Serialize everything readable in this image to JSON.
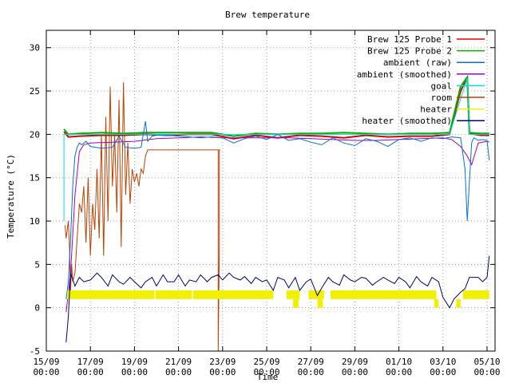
{
  "chart_data": {
    "type": "line",
    "title": "Brew temperature",
    "xlabel": "Time",
    "ylabel": "Temperature (°C)",
    "ylim": [
      -5,
      32
    ],
    "yticks": [
      -5,
      0,
      5,
      10,
      15,
      20,
      25,
      30
    ],
    "xlim": [
      0,
      25
    ],
    "xticks": [
      {
        "x": 0,
        "l1": "15/09",
        "l2": "00:00"
      },
      {
        "x": 2,
        "l1": "17/09",
        "l2": "00:00"
      },
      {
        "x": 4,
        "l1": "19/09",
        "l2": "00:00"
      },
      {
        "x": 6,
        "l1": "21/09",
        "l2": "00:00"
      },
      {
        "x": 8,
        "l1": "23/09",
        "l2": "00:00"
      },
      {
        "x": 10,
        "l1": "25/09",
        "l2": "00:00"
      },
      {
        "x": 12,
        "l1": "27/09",
        "l2": "00:00"
      },
      {
        "x": 14,
        "l1": "29/09",
        "l2": "00:00"
      },
      {
        "x": 16,
        "l1": "01/10",
        "l2": "00:00"
      },
      {
        "x": 18,
        "l1": "03/10",
        "l2": "00:00"
      },
      {
        "x": 20,
        "l1": "05/10",
        "l2": "00:00"
      }
    ],
    "grid": true,
    "legend_position": "top-right",
    "series": [
      {
        "name": "Brew 125 Probe 1",
        "color": "#e00000",
        "x": [
          0.8,
          1.0,
          1.5,
          2.5,
          3.5,
          4.5,
          5.5,
          6.5,
          7.5,
          8.5,
          9.5,
          10.5,
          11.5,
          12.5,
          13.5,
          14.5,
          15.5,
          16.5,
          17.5,
          18.3,
          18.8,
          19.1,
          19.2,
          19.7,
          20.1
        ],
        "y": [
          20.3,
          19.7,
          19.8,
          19.9,
          19.9,
          20.0,
          19.9,
          20.0,
          20.0,
          19.5,
          19.9,
          19.6,
          19.9,
          19.8,
          19.6,
          19.9,
          19.7,
          19.8,
          19.8,
          20.0,
          25.0,
          26.5,
          20.1,
          19.9,
          19.9
        ]
      },
      {
        "name": "Brew 125 Probe 2",
        "color": "#00b000",
        "x": [
          0.8,
          1.0,
          1.5,
          2.5,
          3.5,
          4.5,
          5.5,
          6.5,
          7.5,
          8.5,
          9.5,
          10.5,
          11.5,
          12.5,
          13.5,
          14.5,
          15.5,
          16.5,
          17.5,
          18.3,
          18.8,
          19.1,
          19.2,
          19.7,
          20.1
        ],
        "y": [
          20.6,
          20.0,
          20.1,
          20.2,
          20.1,
          20.2,
          20.2,
          20.2,
          20.2,
          19.8,
          20.1,
          20.0,
          20.1,
          20.1,
          20.2,
          20.1,
          20.0,
          20.1,
          20.1,
          20.2,
          25.5,
          26.6,
          20.2,
          20.1,
          20.1
        ]
      },
      {
        "name": "ambient (raw)",
        "color": "#0070e0",
        "x": [
          0.9,
          1.0,
          1.1,
          1.2,
          1.3,
          1.4,
          1.5,
          1.6,
          1.8,
          2.0,
          2.5,
          3.0,
          3.3,
          3.6,
          4.0,
          4.3,
          4.5,
          4.6,
          4.8,
          5.0,
          5.5,
          6.0,
          6.5,
          7.0,
          7.5,
          8.0,
          8.5,
          9.0,
          9.5,
          10.0,
          10.5,
          11.0,
          11.5,
          12.0,
          12.5,
          13.0,
          13.5,
          14.0,
          14.5,
          15.0,
          15.5,
          16.0,
          16.5,
          17.0,
          17.5,
          18.0,
          18.4,
          18.8,
          19.0,
          19.1,
          19.2,
          19.3,
          19.4,
          19.6,
          19.8,
          20.0,
          20.1
        ],
        "y": [
          1.0,
          3.0,
          8.0,
          14.0,
          17.5,
          18.5,
          19.0,
          18.8,
          19.2,
          18.6,
          18.4,
          18.5,
          19.8,
          18.5,
          18.4,
          18.5,
          21.5,
          19.2,
          19.8,
          19.9,
          19.9,
          19.8,
          19.7,
          19.6,
          19.7,
          19.6,
          19.0,
          19.5,
          19.8,
          19.4,
          20.0,
          19.3,
          19.5,
          19.1,
          18.8,
          19.6,
          19.0,
          18.7,
          19.5,
          19.2,
          18.6,
          19.4,
          19.6,
          19.2,
          19.6,
          19.5,
          19.7,
          19.6,
          16.0,
          10.0,
          14.5,
          19.0,
          19.6,
          19.3,
          19.4,
          19.3,
          17.0
        ]
      },
      {
        "name": "ambient (smoothed)",
        "color": "#a000c0",
        "x": [
          0.9,
          1.1,
          1.3,
          1.5,
          1.7,
          2.0,
          3.0,
          4.0,
          5.0,
          6.0,
          7.0,
          8.0,
          9.0,
          10.0,
          11.0,
          12.0,
          13.0,
          14.0,
          15.0,
          16.0,
          17.0,
          18.0,
          18.4,
          18.8,
          19.1,
          19.3,
          19.6,
          20.0,
          20.1
        ],
        "y": [
          -0.5,
          4.0,
          13.0,
          18.0,
          18.8,
          19.0,
          19.1,
          19.2,
          19.5,
          19.6,
          19.7,
          19.6,
          19.6,
          19.6,
          19.6,
          19.5,
          19.4,
          19.3,
          19.3,
          19.4,
          19.5,
          19.6,
          19.4,
          18.6,
          17.5,
          16.5,
          19.0,
          19.2,
          19.1
        ]
      },
      {
        "name": "goal",
        "color": "#00e0e0",
        "x": [
          0.8,
          0.8,
          18.3,
          19.1,
          19.2,
          20.1
        ],
        "y": [
          10.0,
          20.0,
          20.0,
          26.5,
          20.0,
          20.0
        ]
      },
      {
        "name": "room",
        "color": "#c04000",
        "x": [
          0.85,
          0.9,
          1.0,
          1.05,
          1.1,
          1.15,
          1.2,
          1.3,
          1.4,
          1.5,
          1.6,
          1.7,
          1.8,
          1.9,
          2.0,
          2.1,
          2.2,
          2.3,
          2.4,
          2.5,
          2.6,
          2.7,
          2.8,
          2.9,
          3.0,
          3.1,
          3.2,
          3.3,
          3.4,
          3.5,
          3.6,
          3.7,
          3.8,
          3.9,
          4.0,
          4.1,
          4.2,
          4.3,
          4.4,
          4.5,
          4.6,
          7.8,
          7.8,
          7.85,
          7.85,
          7.9
        ],
        "y": [
          9.5,
          8.0,
          10.0,
          7.0,
          2.0,
          5.0,
          3.0,
          4.0,
          8.0,
          12.0,
          11.0,
          14.0,
          7.5,
          15.0,
          6.0,
          12.0,
          9.0,
          16.0,
          8.0,
          20.0,
          6.0,
          22.0,
          10.0,
          25.5,
          14.0,
          20.0,
          11.0,
          24.0,
          7.0,
          26.0,
          13.0,
          19.0,
          12.0,
          16.0,
          14.5,
          15.5,
          14.0,
          16.0,
          15.5,
          17.5,
          18.2,
          18.2,
          -5.0,
          7.0,
          18.2,
          18.2
        ]
      },
      {
        "name": "heater",
        "color": "#f0f000",
        "x": [],
        "y": []
      },
      {
        "name": "heater (smoothed)",
        "color": "#00007a",
        "x": [
          0.9,
          1.0,
          1.1,
          1.3,
          1.5,
          1.7,
          2.0,
          2.3,
          2.5,
          2.8,
          3.0,
          3.3,
          3.5,
          3.8,
          4.0,
          4.3,
          4.5,
          4.8,
          5.0,
          5.3,
          5.5,
          5.8,
          6.0,
          6.3,
          6.5,
          6.8,
          7.0,
          7.3,
          7.5,
          7.8,
          8.0,
          8.3,
          8.5,
          8.8,
          9.0,
          9.3,
          9.5,
          9.8,
          10.0,
          10.3,
          10.5,
          10.8,
          11.0,
          11.3,
          11.5,
          11.8,
          12.0,
          12.3,
          12.5,
          12.8,
          13.0,
          13.3,
          13.5,
          13.8,
          14.0,
          14.3,
          14.5,
          14.8,
          15.0,
          15.3,
          15.5,
          15.8,
          16.0,
          16.3,
          16.5,
          16.8,
          17.0,
          17.3,
          17.5,
          17.8,
          18.0,
          18.3,
          18.5,
          18.8,
          19.0,
          19.2,
          19.4,
          19.6,
          19.8,
          20.0,
          20.1
        ],
        "y": [
          -4.0,
          -1.0,
          4.0,
          2.5,
          3.5,
          3.0,
          3.2,
          4.0,
          3.5,
          2.5,
          3.8,
          3.0,
          2.7,
          3.5,
          3.0,
          2.3,
          3.0,
          3.5,
          2.5,
          3.8,
          3.0,
          3.0,
          3.8,
          2.5,
          3.2,
          3.0,
          3.8,
          3.0,
          3.5,
          3.8,
          3.2,
          4.0,
          3.5,
          3.2,
          3.6,
          2.8,
          3.5,
          3.0,
          3.2,
          2.0,
          3.5,
          3.2,
          2.3,
          3.5,
          2.0,
          3.0,
          3.3,
          1.4,
          2.3,
          3.5,
          3.0,
          2.6,
          3.8,
          3.2,
          3.0,
          3.5,
          3.4,
          2.6,
          3.0,
          3.5,
          3.2,
          2.8,
          3.5,
          3.0,
          2.3,
          3.6,
          3.0,
          2.5,
          3.5,
          3.0,
          1.2,
          0.0,
          1.0,
          1.8,
          2.2,
          3.5,
          3.5,
          3.5,
          3.0,
          3.5,
          6.0
        ]
      }
    ],
    "heater_blocks": [
      {
        "x0": 0.95,
        "x1": 4.9,
        "y0": 1.0,
        "y1": 2.0
      },
      {
        "x0": 4.95,
        "x1": 6.6,
        "y0": 1.0,
        "y1": 2.0
      },
      {
        "x0": 6.65,
        "x1": 10.3,
        "y0": 1.0,
        "y1": 2.0
      },
      {
        "x0": 10.9,
        "x1": 11.5,
        "y0": 1.0,
        "y1": 2.0
      },
      {
        "x0": 11.2,
        "x1": 11.45,
        "y0": 0.0,
        "y1": 1.0
      },
      {
        "x0": 11.9,
        "x1": 12.6,
        "y0": 1.0,
        "y1": 2.0
      },
      {
        "x0": 12.3,
        "x1": 12.55,
        "y0": 0.0,
        "y1": 1.0
      },
      {
        "x0": 12.9,
        "x1": 17.7,
        "y0": 1.0,
        "y1": 2.0
      },
      {
        "x0": 17.6,
        "x1": 17.8,
        "y0": 0.0,
        "y1": 1.0
      },
      {
        "x0": 18.6,
        "x1": 18.8,
        "y0": 0.0,
        "y1": 1.0
      },
      {
        "x0": 18.9,
        "x1": 20.1,
        "y0": 1.0,
        "y1": 2.0
      }
    ]
  }
}
